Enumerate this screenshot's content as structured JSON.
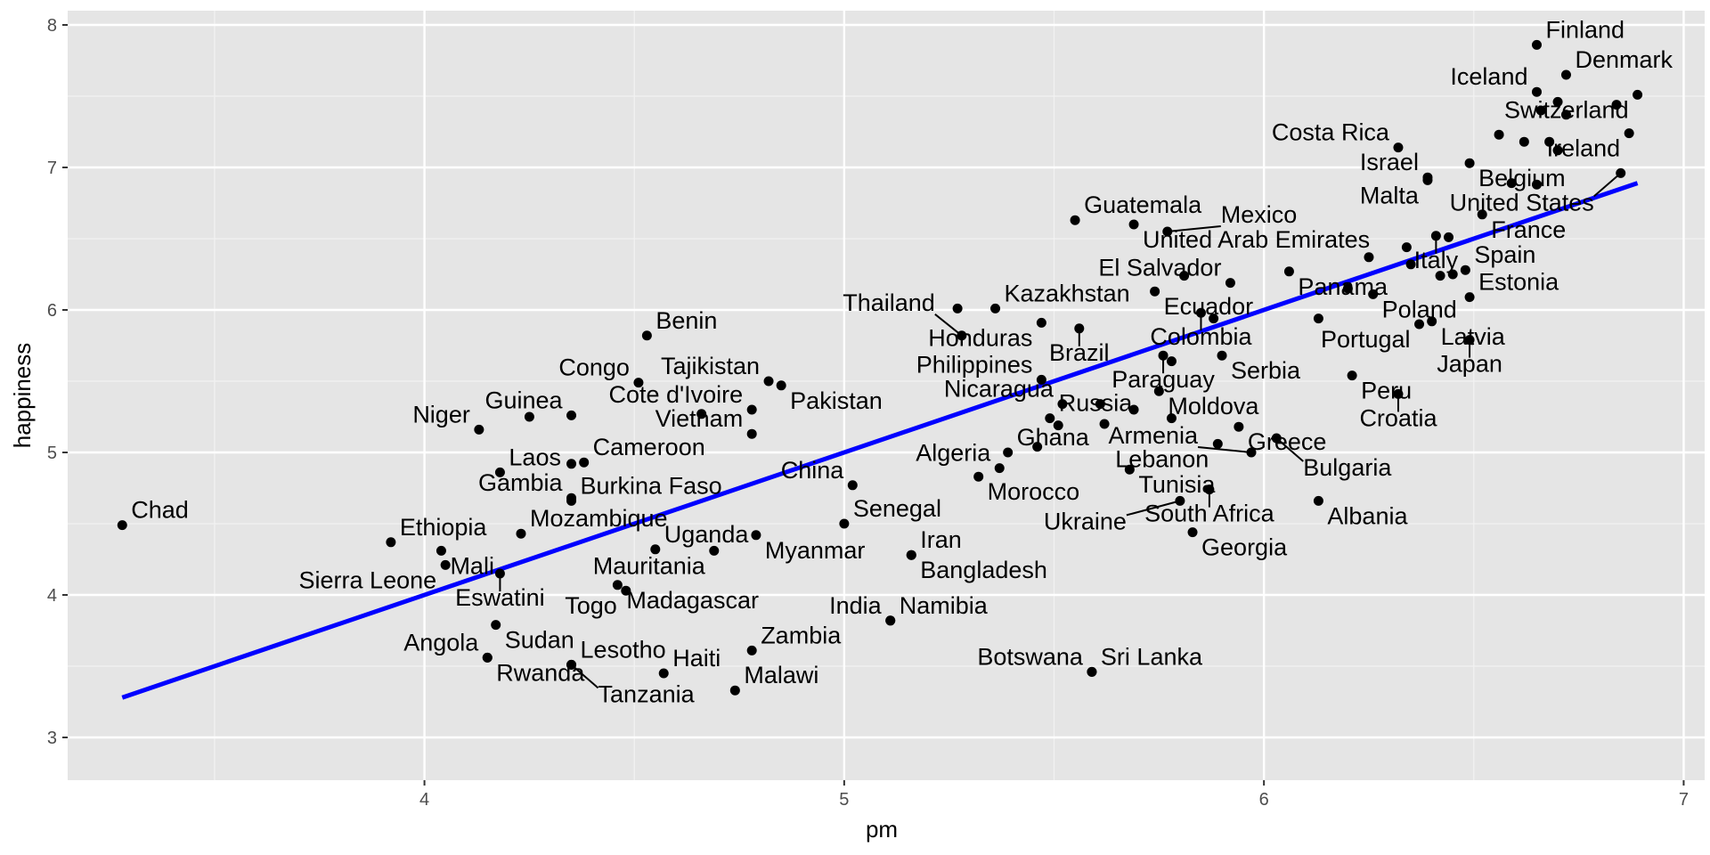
{
  "chart_data": {
    "type": "scatter",
    "xlabel": "pm",
    "ylabel": "happiness",
    "xlim": [
      3.15,
      7.05
    ],
    "ylim": [
      2.7,
      8.1
    ],
    "x_ticks": [
      4,
      5,
      6,
      7
    ],
    "y_ticks": [
      3,
      4,
      5,
      6,
      7,
      8
    ],
    "grid": true,
    "point_color": "#000000",
    "line_color": "#0000ff",
    "panel_color": "#e5e5e5",
    "trend_line": {
      "x": [
        3.28,
        6.89
      ],
      "y": [
        3.28,
        6.89
      ]
    },
    "points": [
      {
        "label": "Chad",
        "x": 3.28,
        "y": 4.49
      },
      {
        "label": "Finland",
        "x": 6.65,
        "y": 7.86
      },
      {
        "label": "Denmark",
        "x": 6.72,
        "y": 7.65
      },
      {
        "label": "Iceland",
        "x": 6.65,
        "y": 7.53
      },
      {
        "label": "Switzerland",
        "x": 6.89,
        "y": 7.51
      },
      {
        "label": "",
        "x": 6.7,
        "y": 7.46
      },
      {
        "label": "",
        "x": 6.84,
        "y": 7.44
      },
      {
        "label": "",
        "x": 6.66,
        "y": 7.4
      },
      {
        "label": "",
        "x": 6.72,
        "y": 7.37
      },
      {
        "label": "Ireland",
        "x": 6.87,
        "y": 7.24
      },
      {
        "label": "",
        "x": 6.56,
        "y": 7.23
      },
      {
        "label": "",
        "x": 6.62,
        "y": 7.18
      },
      {
        "label": "",
        "x": 6.68,
        "y": 7.18
      },
      {
        "label": "Costa Rica",
        "x": 6.32,
        "y": 7.14
      },
      {
        "label": "",
        "x": 6.7,
        "y": 7.12
      },
      {
        "label": "Belgium",
        "x": 6.49,
        "y": 7.03
      },
      {
        "label": "United States",
        "x": 6.85,
        "y": 6.96
      },
      {
        "label": "Israel",
        "x": 6.39,
        "y": 6.93
      },
      {
        "label": "Malta",
        "x": 6.39,
        "y": 6.91
      },
      {
        "label": "",
        "x": 6.59,
        "y": 6.89
      },
      {
        "label": "",
        "x": 6.65,
        "y": 6.88
      },
      {
        "label": "France",
        "x": 6.52,
        "y": 6.67
      },
      {
        "label": "Guatemala",
        "x": 5.55,
        "y": 6.63
      },
      {
        "label": "United Arab Emirates",
        "x": 5.69,
        "y": 6.6
      },
      {
        "label": "Mexico",
        "x": 5.77,
        "y": 6.55
      },
      {
        "label": "Italy",
        "x": 6.41,
        "y": 6.52
      },
      {
        "label": "",
        "x": 6.44,
        "y": 6.51
      },
      {
        "label": "",
        "x": 6.34,
        "y": 6.44
      },
      {
        "label": "",
        "x": 6.25,
        "y": 6.37
      },
      {
        "label": "",
        "x": 6.35,
        "y": 6.32
      },
      {
        "label": "Spain",
        "x": 6.48,
        "y": 6.28
      },
      {
        "label": "Panama",
        "x": 6.06,
        "y": 6.27
      },
      {
        "label": "",
        "x": 6.45,
        "y": 6.25
      },
      {
        "label": "",
        "x": 6.42,
        "y": 6.24
      },
      {
        "label": "",
        "x": 5.81,
        "y": 6.24
      },
      {
        "label": "El Salvador",
        "x": 5.92,
        "y": 6.19
      },
      {
        "label": "",
        "x": 6.2,
        "y": 6.15
      },
      {
        "label": "Ecuador",
        "x": 5.74,
        "y": 6.13
      },
      {
        "label": "Poland",
        "x": 6.26,
        "y": 6.11
      },
      {
        "label": "Estonia",
        "x": 6.49,
        "y": 6.09
      },
      {
        "label": "Kazakhstan",
        "x": 5.36,
        "y": 6.01
      },
      {
        "label": "",
        "x": 5.27,
        "y": 6.01
      },
      {
        "label": "Colombia",
        "x": 5.85,
        "y": 5.98
      },
      {
        "label": "",
        "x": 6.13,
        "y": 5.94
      },
      {
        "label": "",
        "x": 5.88,
        "y": 5.94
      },
      {
        "label": "Latvia",
        "x": 6.4,
        "y": 5.92
      },
      {
        "label": "Honduras",
        "x": 5.47,
        "y": 5.91
      },
      {
        "label": "Portugal",
        "x": 6.37,
        "y": 5.9
      },
      {
        "label": "Brazil",
        "x": 5.56,
        "y": 5.87
      },
      {
        "label": "Thailand",
        "x": 5.28,
        "y": 5.82
      },
      {
        "label": "Benin",
        "x": 4.53,
        "y": 5.82
      },
      {
        "label": "Japan",
        "x": 6.49,
        "y": 5.79
      },
      {
        "label": "Serbia",
        "x": 5.9,
        "y": 5.68
      },
      {
        "label": "Paraguay",
        "x": 5.76,
        "y": 5.68
      },
      {
        "label": "",
        "x": 5.78,
        "y": 5.64
      },
      {
        "label": "Peru",
        "x": 6.21,
        "y": 5.54
      },
      {
        "label": "Philippines",
        "x": 5.47,
        "y": 5.51
      },
      {
        "label": "Tajikistan",
        "x": 4.82,
        "y": 5.5
      },
      {
        "label": "Congo",
        "x": 4.51,
        "y": 5.49
      },
      {
        "label": "Pakistan",
        "x": 4.85,
        "y": 5.47
      },
      {
        "label": "Moldova",
        "x": 5.75,
        "y": 5.43
      },
      {
        "label": "Croatia",
        "x": 6.32,
        "y": 5.41
      },
      {
        "label": "Nicaragua",
        "x": 5.52,
        "y": 5.34
      },
      {
        "label": "",
        "x": 5.61,
        "y": 5.34
      },
      {
        "label": "Cote d'Ivoire",
        "x": 4.78,
        "y": 5.3
      },
      {
        "label": "",
        "x": 5.69,
        "y": 5.3
      },
      {
        "label": "Guinea",
        "x": 4.35,
        "y": 5.26
      },
      {
        "label": "",
        "x": 4.66,
        "y": 5.27
      },
      {
        "label": "",
        "x": 4.25,
        "y": 5.25
      },
      {
        "label": "Russia",
        "x": 5.49,
        "y": 5.24
      },
      {
        "label": "",
        "x": 5.78,
        "y": 5.24
      },
      {
        "label": "",
        "x": 5.62,
        "y": 5.2
      },
      {
        "label": "",
        "x": 5.51,
        "y": 5.19
      },
      {
        "label": "Greece",
        "x": 5.94,
        "y": 5.18
      },
      {
        "label": "Niger",
        "x": 4.13,
        "y": 5.16
      },
      {
        "label": "Vietnam",
        "x": 4.78,
        "y": 5.13
      },
      {
        "label": "Bulgaria",
        "x": 6.03,
        "y": 5.1
      },
      {
        "label": "Lebanon",
        "x": 5.89,
        "y": 5.06
      },
      {
        "label": "",
        "x": 5.46,
        "y": 5.04
      },
      {
        "label": "Ghana",
        "x": 5.39,
        "y": 5.0
      },
      {
        "label": "Armenia",
        "x": 5.97,
        "y": 5.0
      },
      {
        "label": "Cameroon",
        "x": 4.38,
        "y": 4.93
      },
      {
        "label": "",
        "x": 4.35,
        "y": 4.92
      },
      {
        "label": "Algeria",
        "x": 5.37,
        "y": 4.89
      },
      {
        "label": "Tunisia",
        "x": 5.68,
        "y": 4.88
      },
      {
        "label": "Laos",
        "x": 4.18,
        "y": 4.86
      },
      {
        "label": "Morocco",
        "x": 5.32,
        "y": 4.83
      },
      {
        "label": "China",
        "x": 5.02,
        "y": 4.77
      },
      {
        "label": "South Africa",
        "x": 5.87,
        "y": 4.74
      },
      {
        "label": "Albania",
        "x": 6.13,
        "y": 4.66
      },
      {
        "label": "Burkina Faso",
        "x": 4.35,
        "y": 4.66
      },
      {
        "label": "Gambia",
        "x": 4.35,
        "y": 4.68
      },
      {
        "label": "Ukraine",
        "x": 5.8,
        "y": 4.66
      },
      {
        "label": "Senegal",
        "x": 5.0,
        "y": 4.5
      },
      {
        "label": "Georgia",
        "x": 5.83,
        "y": 4.44
      },
      {
        "label": "Mozambique",
        "x": 4.23,
        "y": 4.43
      },
      {
        "label": "Myanmar",
        "x": 4.79,
        "y": 4.42
      },
      {
        "label": "Ethiopia",
        "x": 3.92,
        "y": 4.37
      },
      {
        "label": "Uganda",
        "x": 4.55,
        "y": 4.32
      },
      {
        "label": "Mauritania",
        "x": 4.69,
        "y": 4.31
      },
      {
        "label": "Mali",
        "x": 4.04,
        "y": 4.31
      },
      {
        "label": "Sierra Leone",
        "x": 4.05,
        "y": 4.21
      },
      {
        "label": "Bangladesh",
        "x": 5.16,
        "y": 4.28
      },
      {
        "label": "Eswatini",
        "x": 4.18,
        "y": 4.15
      },
      {
        "label": "Madagascar",
        "x": 4.46,
        "y": 4.07
      },
      {
        "label": "Togo",
        "x": 4.48,
        "y": 4.03
      },
      {
        "label": "Namibia",
        "x": 5.11,
        "y": 3.82
      },
      {
        "label": "Sudan",
        "x": 4.17,
        "y": 3.79
      },
      {
        "label": "Zambia",
        "x": 4.78,
        "y": 3.61
      },
      {
        "label": "Angola",
        "x": 4.15,
        "y": 3.56
      },
      {
        "label": "Lesotho",
        "x": 4.35,
        "y": 3.51
      },
      {
        "label": "Sri Lanka",
        "x": 5.59,
        "y": 3.46
      },
      {
        "label": "Iran",
        "x": 5.16,
        "y": 4.28
      },
      {
        "label": "India",
        "x": 5.11,
        "y": 3.82
      },
      {
        "label": "Haiti",
        "x": 4.57,
        "y": 3.45
      },
      {
        "label": "Rwanda",
        "x": 4.15,
        "y": 3.56
      },
      {
        "label": "Tanzania",
        "x": 4.35,
        "y": 3.51
      },
      {
        "label": "Malawi",
        "x": 4.74,
        "y": 3.33
      },
      {
        "label": "Botswana",
        "x": 5.59,
        "y": 3.46
      }
    ]
  }
}
